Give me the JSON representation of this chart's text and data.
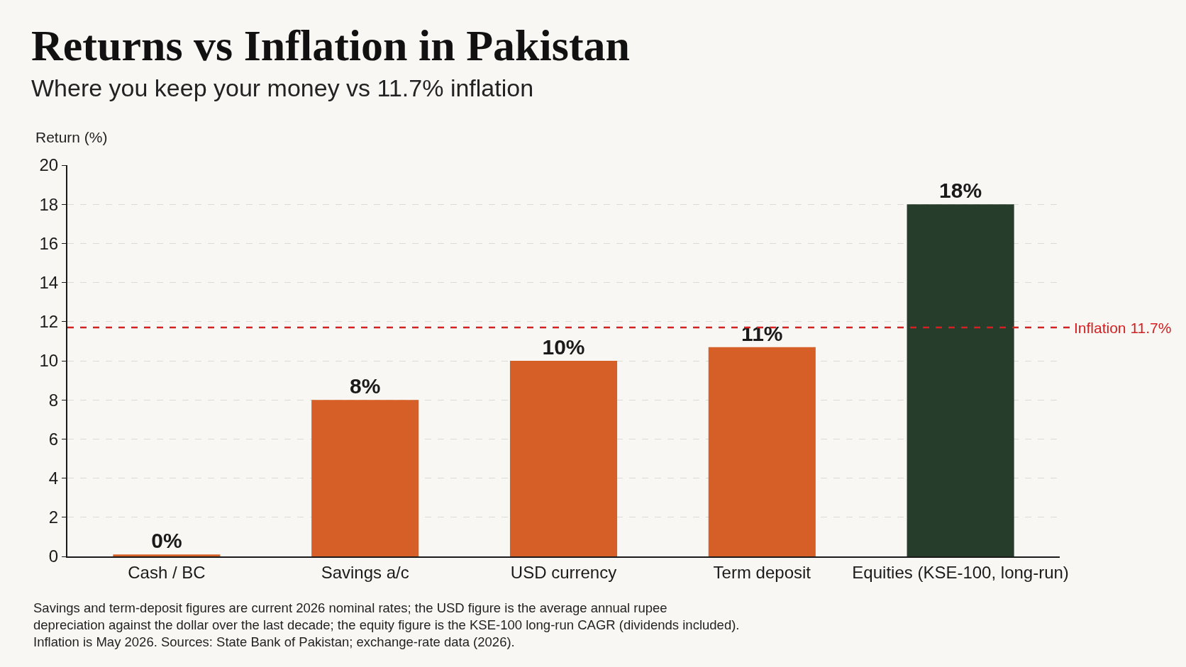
{
  "chart_data": {
    "type": "bar",
    "title": "Returns vs Inflation in Pakistan",
    "subtitle": "Where you keep your money vs 11.7% inflation",
    "ylabel": "Return (%)",
    "categories": [
      "Cash / BC",
      "Savings a/c",
      "USD currency",
      "Term deposit",
      "Equities (KSE-100, long-run)"
    ],
    "values": [
      0.1,
      8,
      10,
      10.7,
      18
    ],
    "value_labels": [
      "0%",
      "8%",
      "10%",
      "11%",
      "18%"
    ],
    "colors": [
      "#d65f27",
      "#d65f27",
      "#d65f27",
      "#d65f27",
      "#263d2b"
    ],
    "ylim": [
      0,
      20
    ],
    "yticks": [
      0,
      2,
      4,
      6,
      8,
      10,
      12,
      14,
      16,
      18,
      20
    ],
    "grid": "y",
    "ref_lines": [
      {
        "axis": "y",
        "value": 11.7,
        "label": "Inflation 11.7%",
        "color": "#d42020",
        "line_style": "dashed"
      }
    ],
    "annotations": [
      "Savings and term-deposit figures are current 2026 nominal rates; the USD figure is the average annual rupee\ndepreciation against the dollar over the last decade; the equity figure is the KSE-100 long-run CAGR (dividends included).\nInflation is May 2026. Sources: State Bank of Pakistan; exchange-rate data (2026)."
    ]
  }
}
